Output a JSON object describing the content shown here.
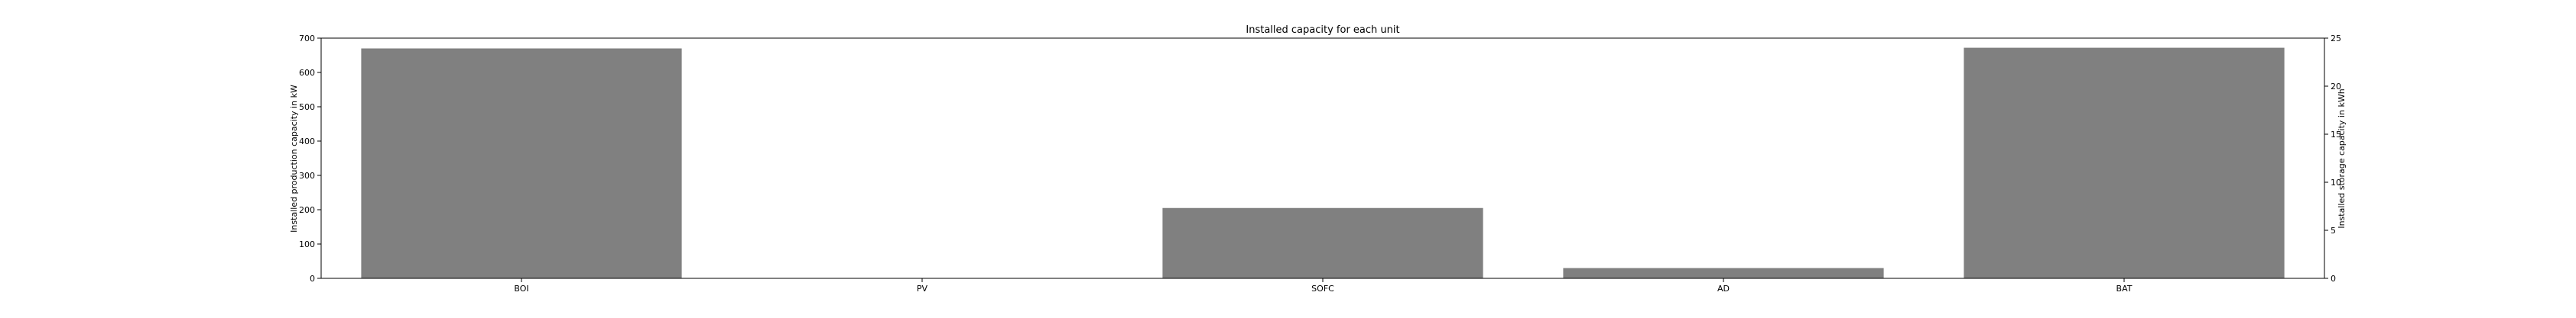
{
  "chart_data": {
    "type": "bar",
    "title": "Installed capacity for each unit",
    "ylabel": "Installed production capacity in kW",
    "ylabel_right": "Installed storage capacity in kWh",
    "categories": [
      "BOI",
      "PV",
      "SOFC",
      "AD",
      "BAT"
    ],
    "series": [
      {
        "values": [
          670,
          0,
          205,
          30,
          null
        ]
      },
      {
        "axis": "right",
        "values": [
          null,
          null,
          null,
          null,
          24
        ]
      }
    ],
    "ylim": [
      0,
      700
    ],
    "ylim_right": [
      0,
      25
    ],
    "yticks": [
      "0",
      "100",
      "200",
      "300",
      "400",
      "500",
      "600",
      "700"
    ],
    "yticks_right": [
      "0",
      "5",
      "10",
      "15",
      "20",
      "25"
    ],
    "bar_color": "#808080",
    "grid": false
  }
}
